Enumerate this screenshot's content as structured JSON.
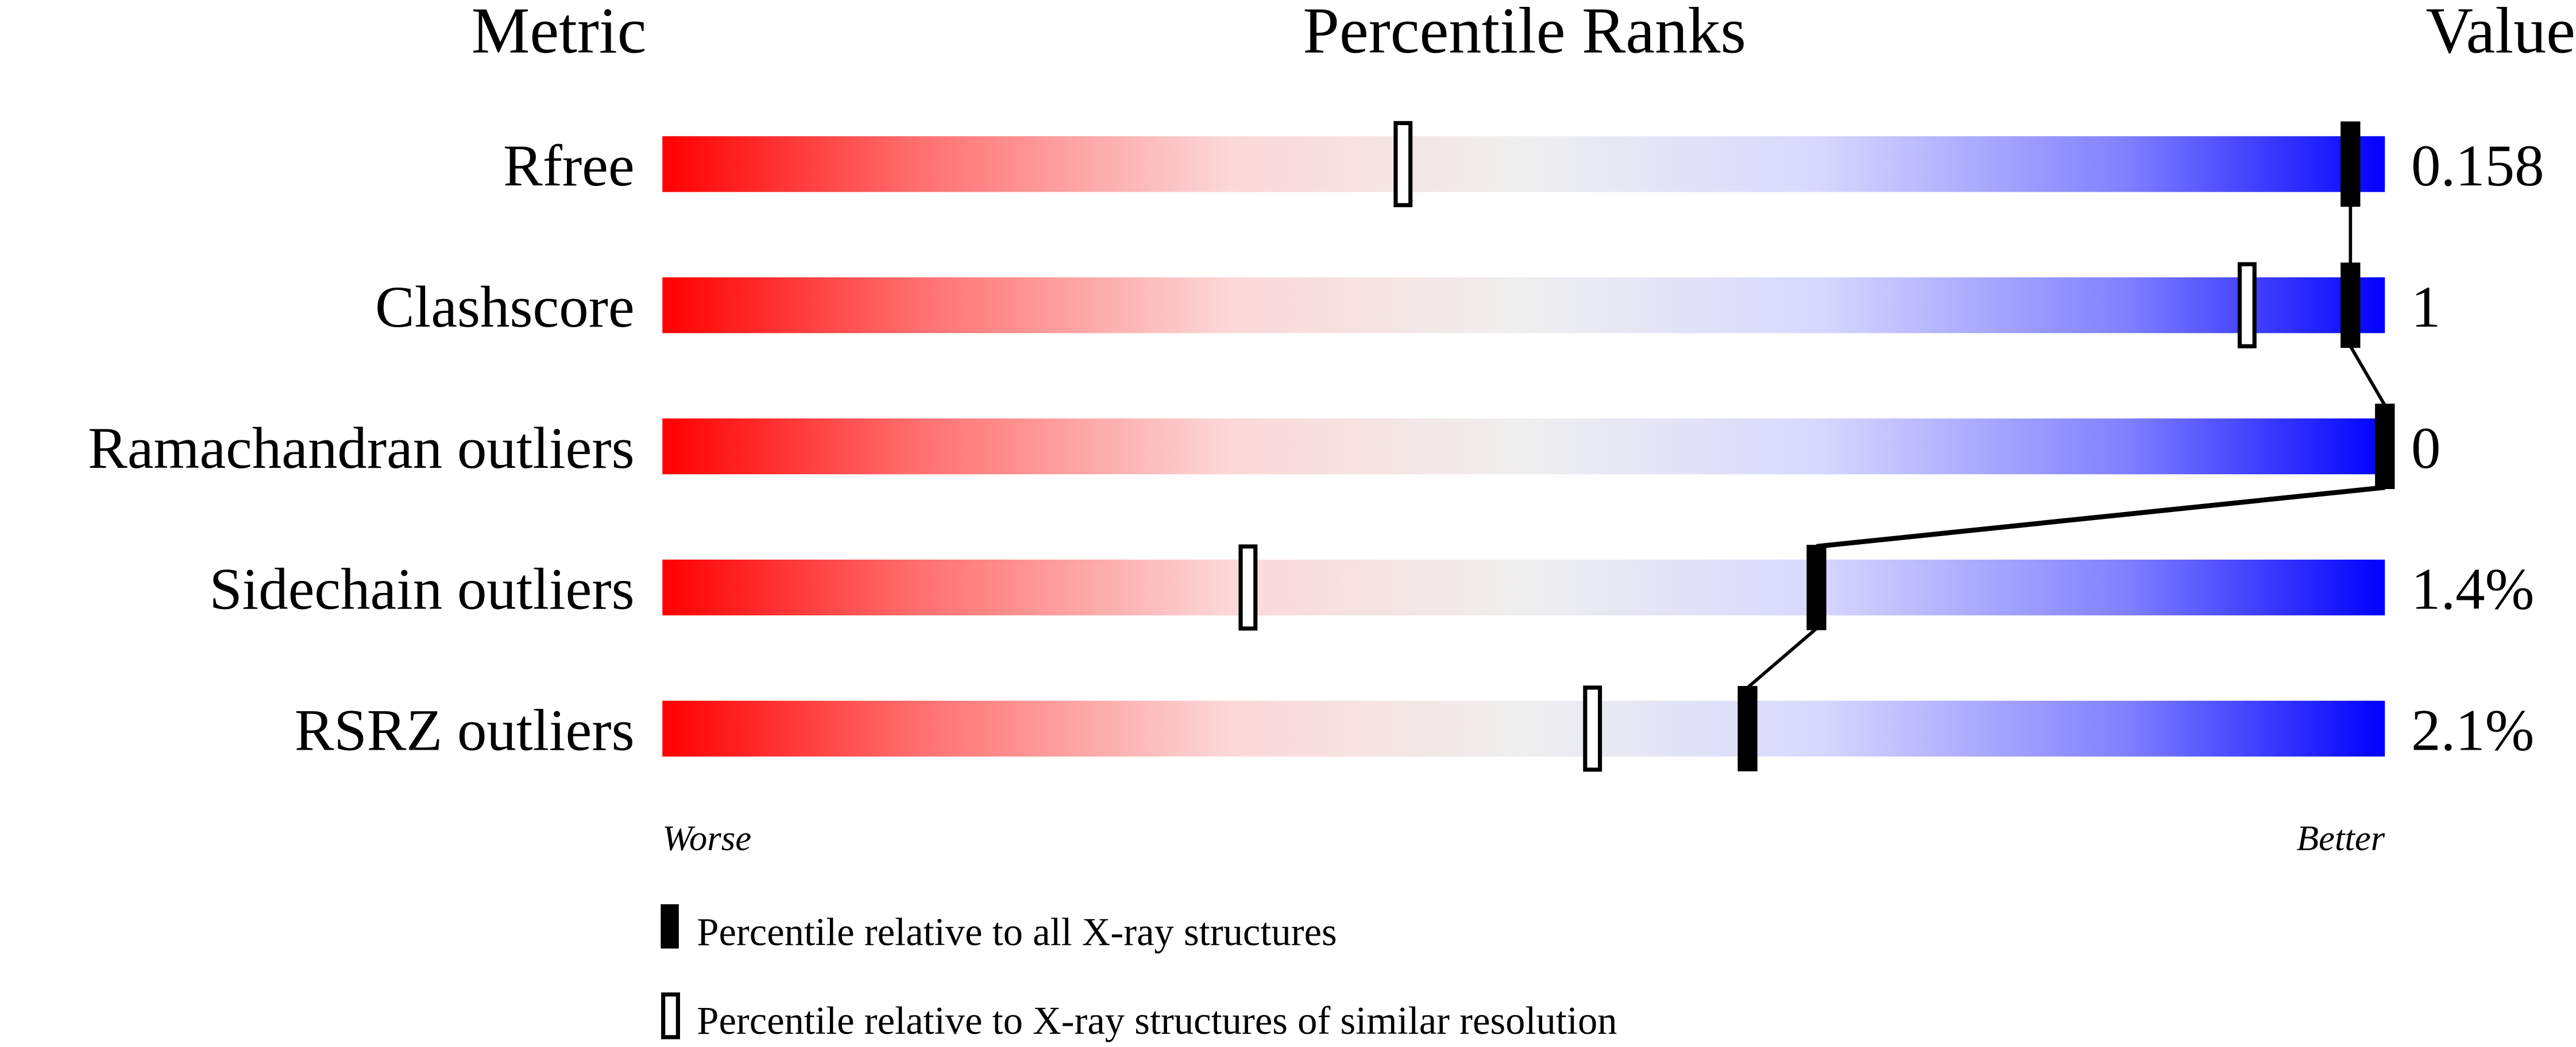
{
  "chart_data": {
    "type": "percentile-slider",
    "headers": {
      "metric": "Metric",
      "ranks": "Percentile Ranks",
      "value": "Value"
    },
    "xlim": [
      0,
      100
    ],
    "axis_labels": {
      "left": "Worse",
      "right": "Better"
    },
    "gradient_colors": [
      "#ff0000",
      "#f0f0f0",
      "#d8d8ff",
      "#0000ff"
    ],
    "rows": [
      {
        "metric": "Rfree",
        "value": "0.158",
        "percentile_all": 98,
        "percentile_similar": 43
      },
      {
        "metric": "Clashscore",
        "value": "1",
        "percentile_all": 98,
        "percentile_similar": 92
      },
      {
        "metric": "Ramachandran outliers",
        "value": "0",
        "percentile_all": 100,
        "percentile_similar": null
      },
      {
        "metric": "Sidechain outliers",
        "value": "1.4%",
        "percentile_all": 67,
        "percentile_similar": 34
      },
      {
        "metric": "RSRZ outliers",
        "value": "2.1%",
        "percentile_all": 63,
        "percentile_similar": 54
      }
    ],
    "legend": [
      {
        "marker": "filled",
        "label": "Percentile relative to all X-ray structures"
      },
      {
        "marker": "open",
        "label": "Percentile relative to X-ray structures of similar resolution"
      }
    ]
  }
}
